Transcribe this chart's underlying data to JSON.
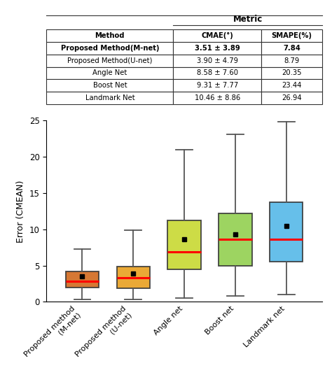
{
  "table": {
    "headers": [
      "Method",
      "CMAE(°)",
      "SMAPE(%)"
    ],
    "rows": [
      [
        "Proposed Method(M-net)",
        "3.51 ± 3.89",
        "7.84"
      ],
      [
        "Proposed Method(U-net)",
        "3.90 ± 4.79",
        "8.79"
      ],
      [
        "Angle Net",
        "8.58 ± 7.60",
        "20.35"
      ],
      [
        "Boost Net",
        "9.31 ± 7.77",
        "23.44"
      ],
      [
        "Landmark Net",
        "10.46 ± 8.86",
        "26.94"
      ]
    ]
  },
  "boxplot": {
    "labels": [
      "Proposed method\n(M-net)",
      "Proposed method\n(U-net)",
      "Angle net",
      "Boost net",
      "Landmark net"
    ],
    "whislo": [
      0.3,
      0.3,
      0.5,
      0.8,
      1.0
    ],
    "q1": [
      2.0,
      1.9,
      4.5,
      5.0,
      5.5
    ],
    "median": [
      2.8,
      3.3,
      6.9,
      8.6,
      8.6
    ],
    "q3": [
      4.2,
      4.9,
      11.2,
      12.2,
      13.7
    ],
    "whishi": [
      7.3,
      9.9,
      21.0,
      23.1,
      24.8
    ],
    "mean": [
      3.51,
      3.9,
      8.58,
      9.31,
      10.46
    ],
    "colors": [
      "#D2691E",
      "#E8A020",
      "#C8D932",
      "#92D050",
      "#55B8E8"
    ],
    "ylabel": "Error (CMEAN)",
    "ylim": [
      0,
      25
    ],
    "yticks": [
      0,
      5,
      10,
      15,
      20,
      25
    ]
  }
}
